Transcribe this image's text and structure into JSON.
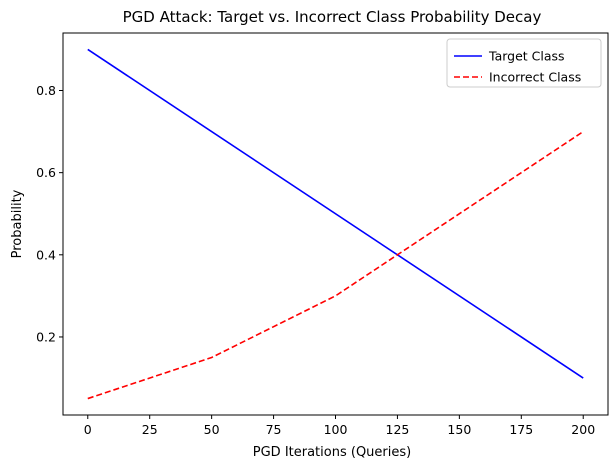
{
  "chart_data": {
    "type": "line",
    "title": "PGD Attack: Target vs. Incorrect Class Probability Decay",
    "xlabel": "PGD Iterations (Queries)",
    "ylabel": "Probability",
    "xlim": [
      -10,
      210
    ],
    "ylim": [
      0.01,
      0.94
    ],
    "xticks": [
      0,
      25,
      50,
      75,
      100,
      125,
      150,
      175,
      200
    ],
    "yticks": [
      0.2,
      0.4,
      0.6,
      0.8
    ],
    "ytick_labels": [
      "0.2",
      "0.4",
      "0.6",
      "0.8"
    ],
    "grid": false,
    "legend_position": "top-right",
    "series": [
      {
        "name": "Target Class",
        "color": "#0000ff",
        "style": "solid",
        "x": [
          0,
          200
        ],
        "y": [
          0.9,
          0.1
        ]
      },
      {
        "name": "Incorrect Class",
        "color": "#ff0000",
        "style": "dashed",
        "x": [
          0,
          50,
          100,
          200
        ],
        "y": [
          0.05,
          0.15,
          0.3,
          0.7
        ]
      }
    ]
  }
}
